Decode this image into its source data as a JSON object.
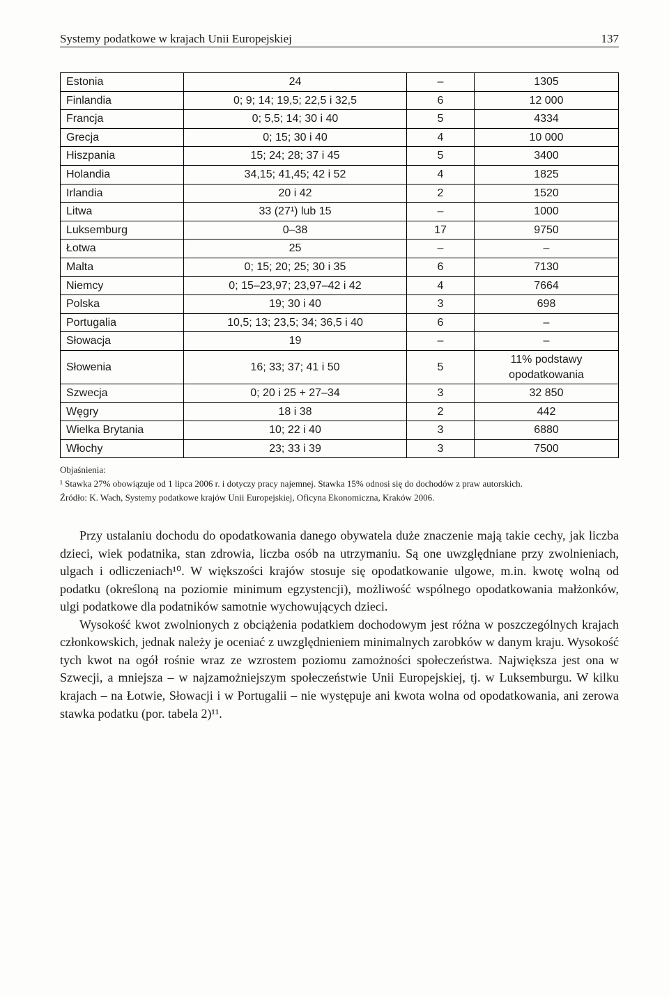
{
  "header": {
    "running_title": "Systemy podatkowe w krajach Unii Europejskiej",
    "page_number": "137"
  },
  "table": {
    "rows": [
      [
        "Estonia",
        "24",
        "–",
        "1305"
      ],
      [
        "Finlandia",
        "0; 9; 14; 19,5; 22,5 i 32,5",
        "6",
        "12 000"
      ],
      [
        "Francja",
        "0; 5,5; 14; 30 i 40",
        "5",
        "4334"
      ],
      [
        "Grecja",
        "0; 15; 30 i 40",
        "4",
        "10 000"
      ],
      [
        "Hiszpania",
        "15; 24; 28; 37 i 45",
        "5",
        "3400"
      ],
      [
        "Holandia",
        "34,15; 41,45; 42 i 52",
        "4",
        "1825"
      ],
      [
        "Irlandia",
        "20 i 42",
        "2",
        "1520"
      ],
      [
        "Litwa",
        "33 (27¹) lub 15",
        "–",
        "1000"
      ],
      [
        "Luksemburg",
        "0–38",
        "17",
        "9750"
      ],
      [
        "Łotwa",
        "25",
        "–",
        "–"
      ],
      [
        "Malta",
        "0; 15; 20; 25; 30 i 35",
        "6",
        "7130"
      ],
      [
        "Niemcy",
        "0; 15–23,97; 23,97–42 i 42",
        "4",
        "7664"
      ],
      [
        "Polska",
        "19; 30 i 40",
        "3",
        "698"
      ],
      [
        "Portugalia",
        "10,5; 13; 23,5; 34; 36,5 i 40",
        "6",
        "–"
      ],
      [
        "Słowacja",
        "19",
        "–",
        "–"
      ],
      [
        "Słowenia",
        "16; 33; 37; 41 i 50",
        "5",
        "11% podstawy opodatkowania"
      ],
      [
        "Szwecja",
        "0; 20 i 25 + 27–34",
        "3",
        "32 850"
      ],
      [
        "Węgry",
        "18 i 38",
        "2",
        "442"
      ],
      [
        "Wielka Brytania",
        "10; 22 i 40",
        "3",
        "6880"
      ],
      [
        "Włochy",
        "23; 33 i 39",
        "3",
        "7500"
      ]
    ]
  },
  "footnotes": {
    "label": "Objaśnienia:",
    "note1": "¹ Stawka 27% obowiązuje od 1 lipca 2006 r. i dotyczy pracy najemnej. Stawka 15% odnosi się do dochodów z praw autorskich.",
    "source": "Źródło: K. Wach, Systemy podatkowe krajów Unii Europejskiej, Oficyna Ekonomiczna, Kraków 2006."
  },
  "body": {
    "p1": "Przy ustalaniu dochodu do opodatkowania danego obywatela duże znaczenie mają takie cechy, jak liczba dzieci, wiek podatnika, stan zdrowia, liczba osób na utrzymaniu. Są one uwzględniane przy zwolnieniach, ulgach i odliczeniach¹⁰. W większości krajów stosuje się opodatkowanie ulgowe, m.in. kwotę wolną od podatku (określoną na poziomie minimum egzystencji), możliwość wspólnego opodatkowania małżonków, ulgi podatkowe dla podatników samotnie wychowujących dzieci.",
    "p2": "Wysokość kwot zwolnionych z obciążenia podatkiem dochodowym jest różna w poszczególnych krajach członkowskich, jednak należy je oceniać z uwzględnieniem minimalnych zarobków w danym kraju. Wysokość tych kwot na ogół rośnie wraz ze wzrostem poziomu zamożności społeczeństwa. Największa jest ona w Szwecji, a mniejsza – w najzamożniejszym społeczeństwie Unii Europejskiej, tj. w Luksemburgu. W kilku krajach – na Łotwie, Słowacji i w Portugalii – nie występuje ani kwota wolna od opodatkowania, ani zerowa stawka podatku (por. tabela 2)¹¹."
  }
}
